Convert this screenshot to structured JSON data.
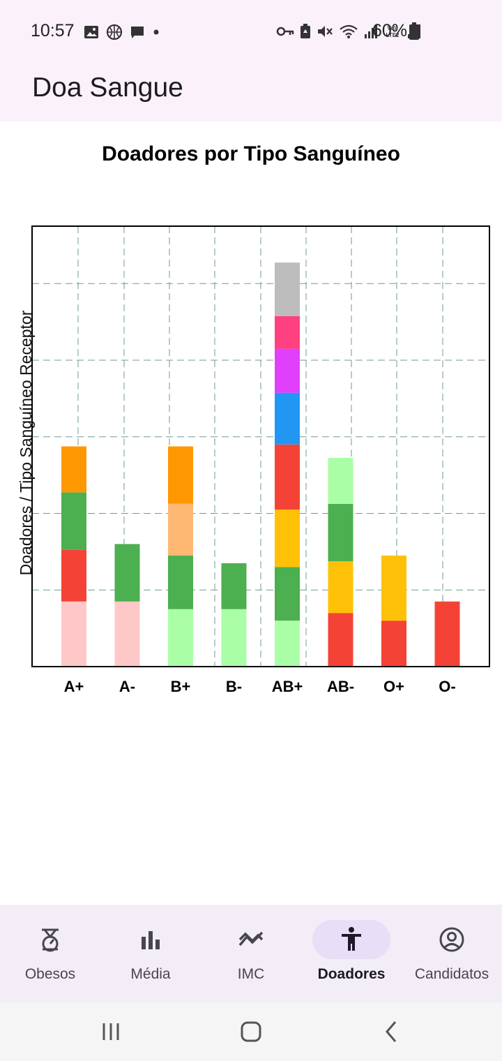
{
  "status_bar": {
    "time": "10:57",
    "battery": "60%",
    "left_icons": [
      "image-icon",
      "basketball-icon",
      "chat-icon",
      "dot-icon"
    ],
    "right_icons": [
      "key-icon",
      "battery-saver-icon",
      "mute-icon",
      "wifi-icon",
      "signal-icon",
      "volte-icon",
      "signal-icon"
    ]
  },
  "app_bar": {
    "title": "Doa Sangue"
  },
  "chart_data": {
    "type": "bar",
    "stacked": true,
    "title": "Doadores por Tipo Sanguíneo",
    "xlabel": "",
    "ylabel": "Doadores / Tipo Sanguíneo Receptor",
    "categories": [
      "A+",
      "A-",
      "B+",
      "B-",
      "AB+",
      "AB-",
      "O+",
      "O-"
    ],
    "ylim": [
      0,
      11.5
    ],
    "grid": true,
    "y_tick_labels_shown": false,
    "stacks": [
      {
        "category": "A+",
        "segments": [
          {
            "value": 1.7,
            "color": "#ffc8c8"
          },
          {
            "value": 1.35,
            "color": "#f44336"
          },
          {
            "value": 1.5,
            "color": "#4caf50"
          },
          {
            "value": 1.2,
            "color": "#ff9800"
          }
        ]
      },
      {
        "category": "A-",
        "segments": [
          {
            "value": 1.7,
            "color": "#ffc8c8"
          },
          {
            "value": 1.5,
            "color": "#4caf50"
          }
        ]
      },
      {
        "category": "B+",
        "segments": [
          {
            "value": 1.5,
            "color": "#aaffa6"
          },
          {
            "value": 1.4,
            "color": "#4caf50"
          },
          {
            "value": 1.35,
            "color": "#ffb874"
          },
          {
            "value": 1.5,
            "color": "#ff9800"
          }
        ]
      },
      {
        "category": "B-",
        "segments": [
          {
            "value": 1.5,
            "color": "#aaffa6"
          },
          {
            "value": 1.2,
            "color": "#4caf50"
          }
        ]
      },
      {
        "category": "AB+",
        "segments": [
          {
            "value": 1.2,
            "color": "#aaffa6"
          },
          {
            "value": 1.4,
            "color": "#4caf50"
          },
          {
            "value": 1.5,
            "color": "#ffc107"
          },
          {
            "value": 1.7,
            "color": "#f44336"
          },
          {
            "value": 1.35,
            "color": "#2196f3"
          },
          {
            "value": 1.15,
            "color": "#e040fb"
          },
          {
            "value": 0.85,
            "color": "#ff4081"
          },
          {
            "value": 1.4,
            "color": "#bdbdbd"
          }
        ]
      },
      {
        "category": "AB-",
        "segments": [
          {
            "value": 1.4,
            "color": "#f44336"
          },
          {
            "value": 1.35,
            "color": "#ffc107"
          },
          {
            "value": 1.5,
            "color": "#4caf50"
          },
          {
            "value": 1.2,
            "color": "#aaffa6"
          }
        ]
      },
      {
        "category": "O+",
        "segments": [
          {
            "value": 1.2,
            "color": "#f44336"
          },
          {
            "value": 1.7,
            "color": "#ffc107"
          }
        ]
      },
      {
        "category": "O-",
        "segments": [
          {
            "value": 1.7,
            "color": "#f44336"
          }
        ]
      }
    ]
  },
  "bottom_nav": {
    "items": [
      {
        "label": "Obesos",
        "icon": "scale-icon",
        "active": false
      },
      {
        "label": "Média",
        "icon": "bar-chart-icon",
        "active": false
      },
      {
        "label": "IMC",
        "icon": "trend-icon",
        "active": false
      },
      {
        "label": "Doadores",
        "icon": "person-icon",
        "active": true
      },
      {
        "label": "Candidatos",
        "icon": "account-circle-icon",
        "active": false
      }
    ]
  },
  "system_nav": [
    "recent-apps-icon",
    "home-icon",
    "back-icon"
  ]
}
